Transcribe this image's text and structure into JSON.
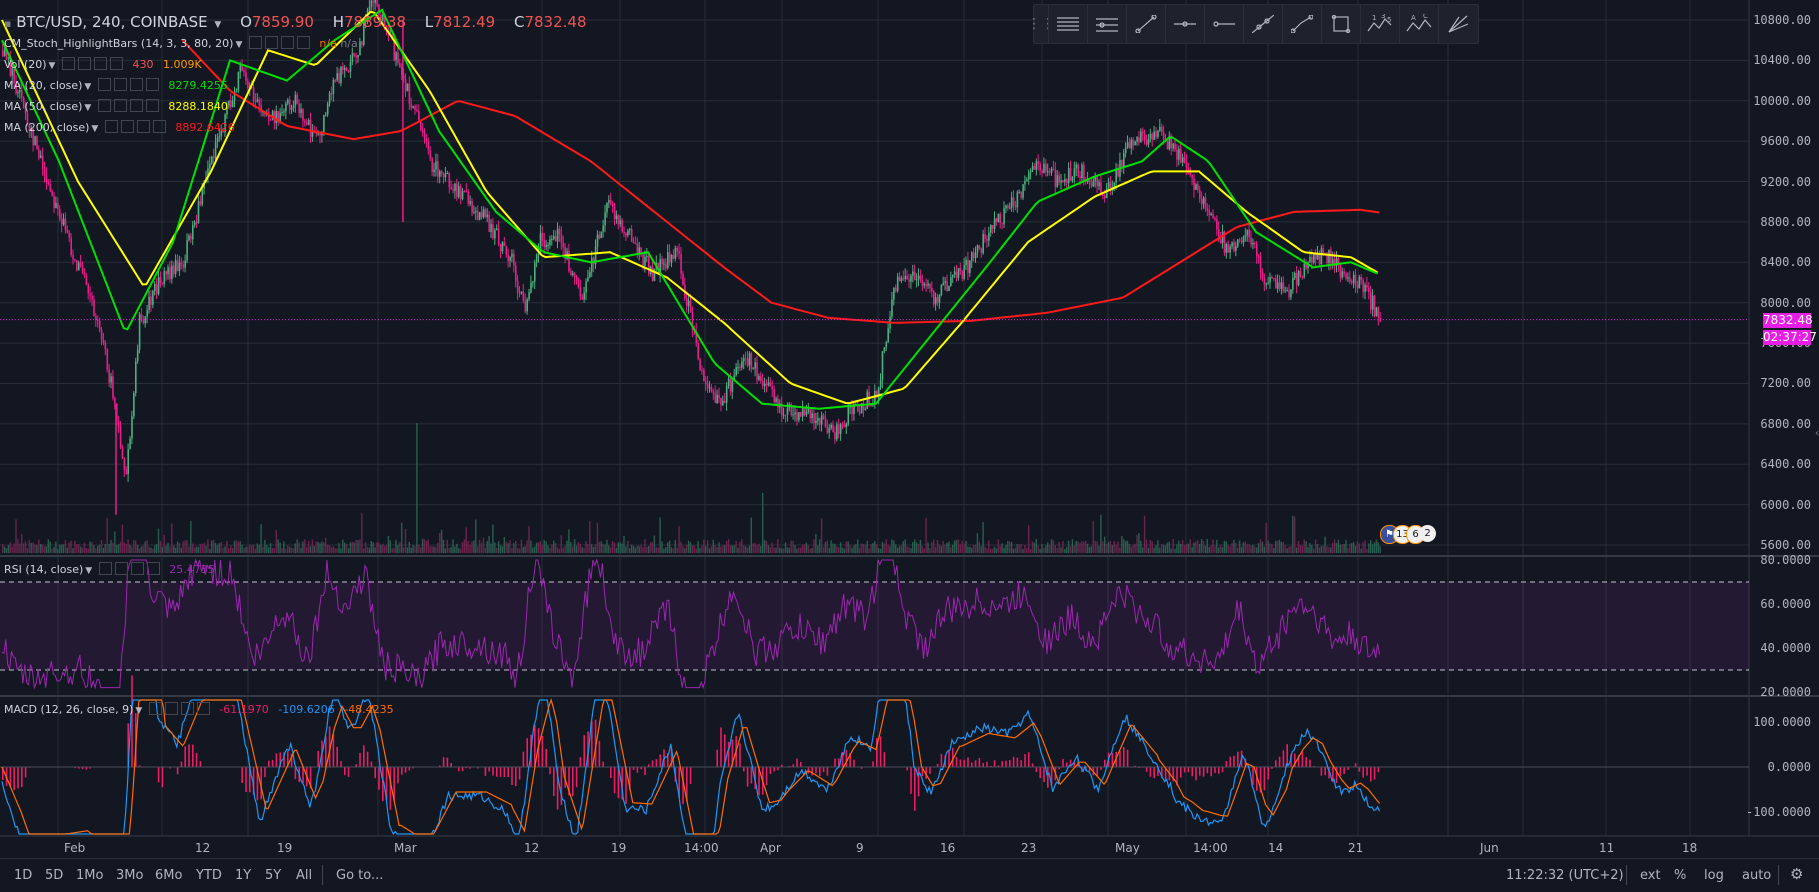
{
  "title": {
    "symbol": "BTC/USD, 240, COINBASE",
    "o_label": "O",
    "o": "7859.90",
    "h_label": "H",
    "h": "7889.38",
    "l_label": "L",
    "l": "7812.49",
    "c_label": "C",
    "c": "7832.48"
  },
  "indicators": {
    "stoch": {
      "name": "CM_Stoch_HighlightBars (14, 3, 3, 80, 20)",
      "v1": "n/a",
      "v2": "n/a"
    },
    "vol": {
      "name": "Vol (20)",
      "v1": "430",
      "v2": "1.009K"
    },
    "ma20": {
      "name": "MA (20, close)",
      "value": "8279.4255",
      "color": "#00e000"
    },
    "ma50": {
      "name": "MA (50, close)",
      "value": "8288.1840",
      "color": "#ffff00"
    },
    "ma200": {
      "name": "MA (200, close)",
      "value": "8892.6426",
      "color": "#ff1a1a"
    },
    "rsi": {
      "name": "RSI (14, close)",
      "value": "25.4735",
      "color": "#9c27b0"
    },
    "macd": {
      "name": "MACD (12, 26, close, 9)",
      "v1": "-61.1970",
      "v2": "-109.6206",
      "v3": "-48.4235",
      "c1": "#e91e63",
      "c2": "#2196f3",
      "c3": "#ff6d00"
    }
  },
  "price_axis": {
    "ticks": [
      "10800.00",
      "10400.00",
      "10000.00",
      "9600.00",
      "9200.00",
      "8800.00",
      "8400.00",
      "8000.00",
      "7600.00",
      "7200.00",
      "6800.00",
      "6400.00",
      "6000.00",
      "5600.00"
    ],
    "last_price": "7832.48",
    "countdown": "02:37:27"
  },
  "rsi_axis": {
    "ticks": [
      "80.0000",
      "60.0000",
      "40.0000",
      "20.0000"
    ]
  },
  "macd_axis": {
    "ticks": [
      "100.0000",
      "0.0000",
      "-100.0000"
    ]
  },
  "time_axis": [
    "Feb",
    "12",
    "19",
    "Mar",
    "12",
    "19",
    "14:00",
    "Apr",
    "9",
    "16",
    "23",
    "May",
    "14:00",
    "14",
    "21",
    "Jun",
    "11",
    "18"
  ],
  "events": {
    "a": "13",
    "b": "6",
    "c": "2"
  },
  "toolbar": {
    "icons": [
      "horizontal-lines-icon",
      "trend-lines-icon",
      "ray-icon",
      "horizontal-line-icon",
      "horizontal-ray-icon",
      "extended-line-icon",
      "parallel-channel-icon",
      "rectangle-icon",
      "elliott-wave-icon",
      "abcd-pattern-icon",
      "fib-fan-icon"
    ],
    "wave_labels": [
      "1",
      "3",
      "5"
    ],
    "abc_labels": [
      "A",
      "C"
    ]
  },
  "bottom_bar": {
    "ranges": [
      "1D",
      "5D",
      "1Mo",
      "3Mo",
      "6Mo",
      "YTD",
      "1Y",
      "5Y",
      "All"
    ],
    "goto": "Go to...",
    "clock": "11:22:32 (UTC+2)",
    "ext": "ext",
    "pct": "%",
    "log": "log",
    "auto": "auto"
  },
  "colors": {
    "bg": "#131722",
    "up": "#4caf7d",
    "down": "#e91e8c",
    "grid": "#2a2e39",
    "ma20": "#00e000",
    "ma50": "#ffff00",
    "ma200": "#ff1a1a",
    "rsi": "#9c27b0",
    "macd_hist": "#e91e63",
    "macd_line": "#2196f3",
    "signal_line": "#ff6d00",
    "last_price": "#e91ee6"
  },
  "chart_data": {
    "type": "candlestick",
    "price_range": [
      5500,
      10950
    ],
    "close_path": [
      [
        0,
        10500
      ],
      [
        10,
        10000
      ],
      [
        20,
        9400
      ],
      [
        35,
        8600
      ],
      [
        45,
        8100
      ],
      [
        55,
        7400
      ],
      [
        65,
        6300
      ],
      [
        72,
        7800
      ],
      [
        82,
        8200
      ],
      [
        95,
        8400
      ],
      [
        110,
        9400
      ],
      [
        125,
        10300
      ],
      [
        140,
        9800
      ],
      [
        155,
        10000
      ],
      [
        165,
        9600
      ],
      [
        175,
        10200
      ],
      [
        185,
        10400
      ],
      [
        195,
        11000
      ],
      [
        210,
        10300
      ],
      [
        225,
        9400
      ],
      [
        240,
        9100
      ],
      [
        255,
        8800
      ],
      [
        268,
        8400
      ],
      [
        275,
        7900
      ],
      [
        282,
        8600
      ],
      [
        292,
        8700
      ],
      [
        305,
        8000
      ],
      [
        318,
        9000
      ],
      [
        332,
        8600
      ],
      [
        342,
        8300
      ],
      [
        355,
        8500
      ],
      [
        368,
        7300
      ],
      [
        378,
        7000
      ],
      [
        390,
        7500
      ],
      [
        400,
        7200
      ],
      [
        410,
        6950
      ],
      [
        425,
        6900
      ],
      [
        437,
        6700
      ],
      [
        448,
        6950
      ],
      [
        460,
        7100
      ],
      [
        470,
        8200
      ],
      [
        480,
        8300
      ],
      [
        490,
        8050
      ],
      [
        505,
        8300
      ],
      [
        520,
        8700
      ],
      [
        533,
        9000
      ],
      [
        543,
        9400
      ],
      [
        556,
        9200
      ],
      [
        567,
        9300
      ],
      [
        580,
        9100
      ],
      [
        595,
        9600
      ],
      [
        608,
        9700
      ],
      [
        618,
        9500
      ],
      [
        627,
        9200
      ],
      [
        635,
        8900
      ],
      [
        645,
        8500
      ],
      [
        655,
        8700
      ],
      [
        665,
        8200
      ],
      [
        676,
        8100
      ],
      [
        685,
        8350
      ],
      [
        695,
        8500
      ],
      [
        705,
        8300
      ],
      [
        715,
        8200
      ],
      [
        725,
        7832
      ]
    ],
    "ma20_path": [
      [
        0,
        10600
      ],
      [
        30,
        9400
      ],
      [
        65,
        7700
      ],
      [
        90,
        8600
      ],
      [
        120,
        10400
      ],
      [
        150,
        10200
      ],
      [
        175,
        10600
      ],
      [
        200,
        10900
      ],
      [
        230,
        9700
      ],
      [
        260,
        8900
      ],
      [
        285,
        8500
      ],
      [
        310,
        8400
      ],
      [
        340,
        8500
      ],
      [
        375,
        7400
      ],
      [
        400,
        7000
      ],
      [
        430,
        6950
      ],
      [
        460,
        7000
      ],
      [
        490,
        7700
      ],
      [
        520,
        8400
      ],
      [
        545,
        9000
      ],
      [
        575,
        9250
      ],
      [
        600,
        9400
      ],
      [
        615,
        9650
      ],
      [
        635,
        9400
      ],
      [
        660,
        8700
      ],
      [
        690,
        8350
      ],
      [
        710,
        8400
      ],
      [
        725,
        8280
      ]
    ],
    "ma50_path": [
      [
        0,
        10800
      ],
      [
        40,
        9200
      ],
      [
        75,
        8150
      ],
      [
        110,
        9300
      ],
      [
        140,
        10500
      ],
      [
        165,
        10350
      ],
      [
        195,
        10900
      ],
      [
        225,
        10100
      ],
      [
        255,
        9100
      ],
      [
        285,
        8450
      ],
      [
        320,
        8500
      ],
      [
        350,
        8250
      ],
      [
        380,
        7800
      ],
      [
        415,
        7200
      ],
      [
        445,
        7000
      ],
      [
        475,
        7150
      ],
      [
        505,
        7800
      ],
      [
        540,
        8600
      ],
      [
        575,
        9050
      ],
      [
        605,
        9300
      ],
      [
        630,
        9300
      ],
      [
        655,
        8900
      ],
      [
        685,
        8500
      ],
      [
        710,
        8450
      ],
      [
        725,
        8288
      ]
    ],
    "ma200_path": [
      [
        95,
        10600
      ],
      [
        120,
        10100
      ],
      [
        150,
        9750
      ],
      [
        185,
        9620
      ],
      [
        210,
        9700
      ],
      [
        240,
        10000
      ],
      [
        270,
        9850
      ],
      [
        310,
        9400
      ],
      [
        350,
        8800
      ],
      [
        380,
        8350
      ],
      [
        405,
        8000
      ],
      [
        435,
        7850
      ],
      [
        470,
        7800
      ],
      [
        510,
        7820
      ],
      [
        550,
        7900
      ],
      [
        590,
        8050
      ],
      [
        620,
        8400
      ],
      [
        650,
        8750
      ],
      [
        680,
        8900
      ],
      [
        715,
        8920
      ],
      [
        725,
        8893
      ]
    ],
    "last_price": 7832.48,
    "volume_scale": [
      0,
      1
    ],
    "rsi_range": [
      20,
      80
    ],
    "rsi_bands": [
      30,
      70
    ],
    "macd_range": [
      -150,
      150
    ]
  }
}
